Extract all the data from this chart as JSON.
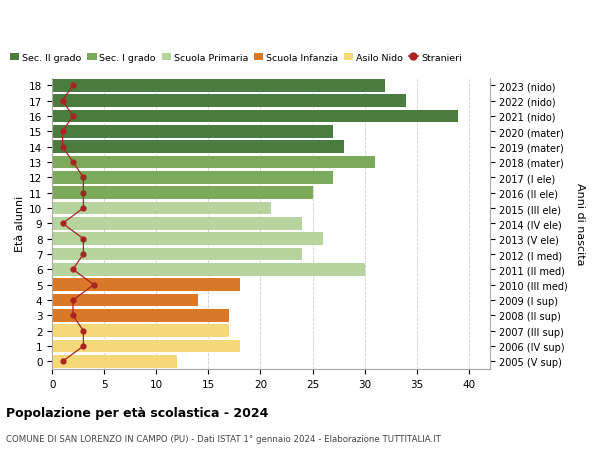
{
  "ages": [
    18,
    17,
    16,
    15,
    14,
    13,
    12,
    11,
    10,
    9,
    8,
    7,
    6,
    5,
    4,
    3,
    2,
    1,
    0
  ],
  "years": [
    "2005 (V sup)",
    "2006 (IV sup)",
    "2007 (III sup)",
    "2008 (II sup)",
    "2009 (I sup)",
    "2010 (III med)",
    "2011 (II med)",
    "2012 (I med)",
    "2013 (V ele)",
    "2014 (IV ele)",
    "2015 (III ele)",
    "2016 (II ele)",
    "2017 (I ele)",
    "2018 (mater)",
    "2019 (mater)",
    "2020 (mater)",
    "2021 (nido)",
    "2022 (nido)",
    "2023 (nido)"
  ],
  "values": [
    32,
    34,
    39,
    27,
    28,
    31,
    27,
    25,
    21,
    24,
    26,
    24,
    30,
    18,
    14,
    17,
    17,
    18,
    12
  ],
  "stranieri": [
    2,
    1,
    2,
    1,
    1,
    2,
    3,
    3,
    3,
    1,
    3,
    3,
    2,
    4,
    2,
    2,
    3,
    3,
    1
  ],
  "colors": [
    "#4a7c3f",
    "#4a7c3f",
    "#4a7c3f",
    "#4a7c3f",
    "#4a7c3f",
    "#7daa5a",
    "#7daa5a",
    "#7daa5a",
    "#b8d49e",
    "#b8d49e",
    "#b8d49e",
    "#b8d49e",
    "#b8d49e",
    "#d97828",
    "#d97828",
    "#d97828",
    "#f5d878",
    "#f5d878",
    "#f5d878"
  ],
  "legend_labels": [
    "Sec. II grado",
    "Sec. I grado",
    "Scuola Primaria",
    "Scuola Infanzia",
    "Asilo Nido",
    "Stranieri"
  ],
  "legend_colors": [
    "#4a7c3f",
    "#7daa5a",
    "#b8d49e",
    "#d97828",
    "#f5d878",
    "#aa2222"
  ],
  "title": "Popolazione per età scolastica - 2024",
  "subtitle": "COMUNE DI SAN LORENZO IN CAMPO (PU) - Dati ISTAT 1° gennaio 2024 - Elaborazione TUTTITALIA.IT",
  "ylabel_left": "Età alunni",
  "ylabel_right": "Anni di nascita",
  "xlim": [
    0,
    42
  ],
  "xticks": [
    0,
    5,
    10,
    15,
    20,
    25,
    30,
    35,
    40
  ],
  "background_color": "#ffffff",
  "grid_color": "#cccccc",
  "stranieri_color": "#aa2222"
}
